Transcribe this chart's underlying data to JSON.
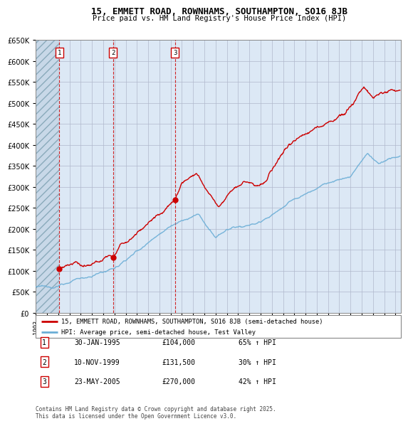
{
  "title": "15, EMMETT ROAD, ROWNHAMS, SOUTHAMPTON, SO16 8JB",
  "subtitle": "Price paid vs. HM Land Registry's House Price Index (HPI)",
  "purchases": [
    {
      "num": 1,
      "date": "30-JAN-1995",
      "price": 104000,
      "year": 1995.08,
      "pct": "65%",
      "dir": "↑"
    },
    {
      "num": 2,
      "date": "10-NOV-1999",
      "price": 131500,
      "year": 1999.86,
      "pct": "30%",
      "dir": "↑"
    },
    {
      "num": 3,
      "date": "23-MAY-2005",
      "price": 270000,
      "year": 2005.39,
      "pct": "42%",
      "dir": "↑"
    }
  ],
  "legend_line1": "15, EMMETT ROAD, ROWNHAMS, SOUTHAMPTON, SO16 8JB (semi-detached house)",
  "legend_line2": "HPI: Average price, semi-detached house, Test Valley",
  "footnote": "Contains HM Land Registry data © Crown copyright and database right 2025.\nThis data is licensed under the Open Government Licence v3.0.",
  "table_rows": [
    {
      "num": "1",
      "date": "30-JAN-1995",
      "price": "£104,000",
      "pct": "65% ↑ HPI"
    },
    {
      "num": "2",
      "date": "10-NOV-1999",
      "price": "£131,500",
      "pct": "30% ↑ HPI"
    },
    {
      "num": "3",
      "date": "23-MAY-2005",
      "price": "£270,000",
      "pct": "42% ↑ HPI"
    }
  ],
  "red_color": "#cc0000",
  "blue_color": "#6baed6",
  "bg_color": "#dce8f5",
  "grid_color": "#b0b8cc",
  "ylim": [
    0,
    650000
  ],
  "yticks": [
    0,
    50000,
    100000,
    150000,
    200000,
    250000,
    300000,
    350000,
    400000,
    450000,
    500000,
    550000,
    600000,
    650000
  ],
  "xlim_start": 1993.0,
  "xlim_end": 2025.5,
  "hatch_end": 1995.08
}
